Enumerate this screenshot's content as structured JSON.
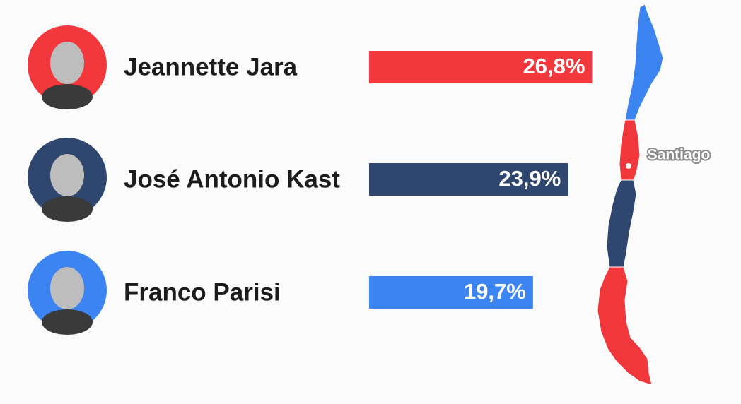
{
  "chart_data": {
    "type": "bar",
    "orientation": "horizontal",
    "categories": [
      "Jeannette Jara",
      "José Antonio Kast",
      "Franco Parisi"
    ],
    "values": [
      26.8,
      23.9,
      19.7
    ],
    "value_labels": [
      "26,8%",
      "23,9%",
      "19,7%"
    ],
    "colors": [
      "#f2383d",
      "#2f466f",
      "#3b84f1"
    ],
    "annotations": [
      "Santiago"
    ]
  }
}
